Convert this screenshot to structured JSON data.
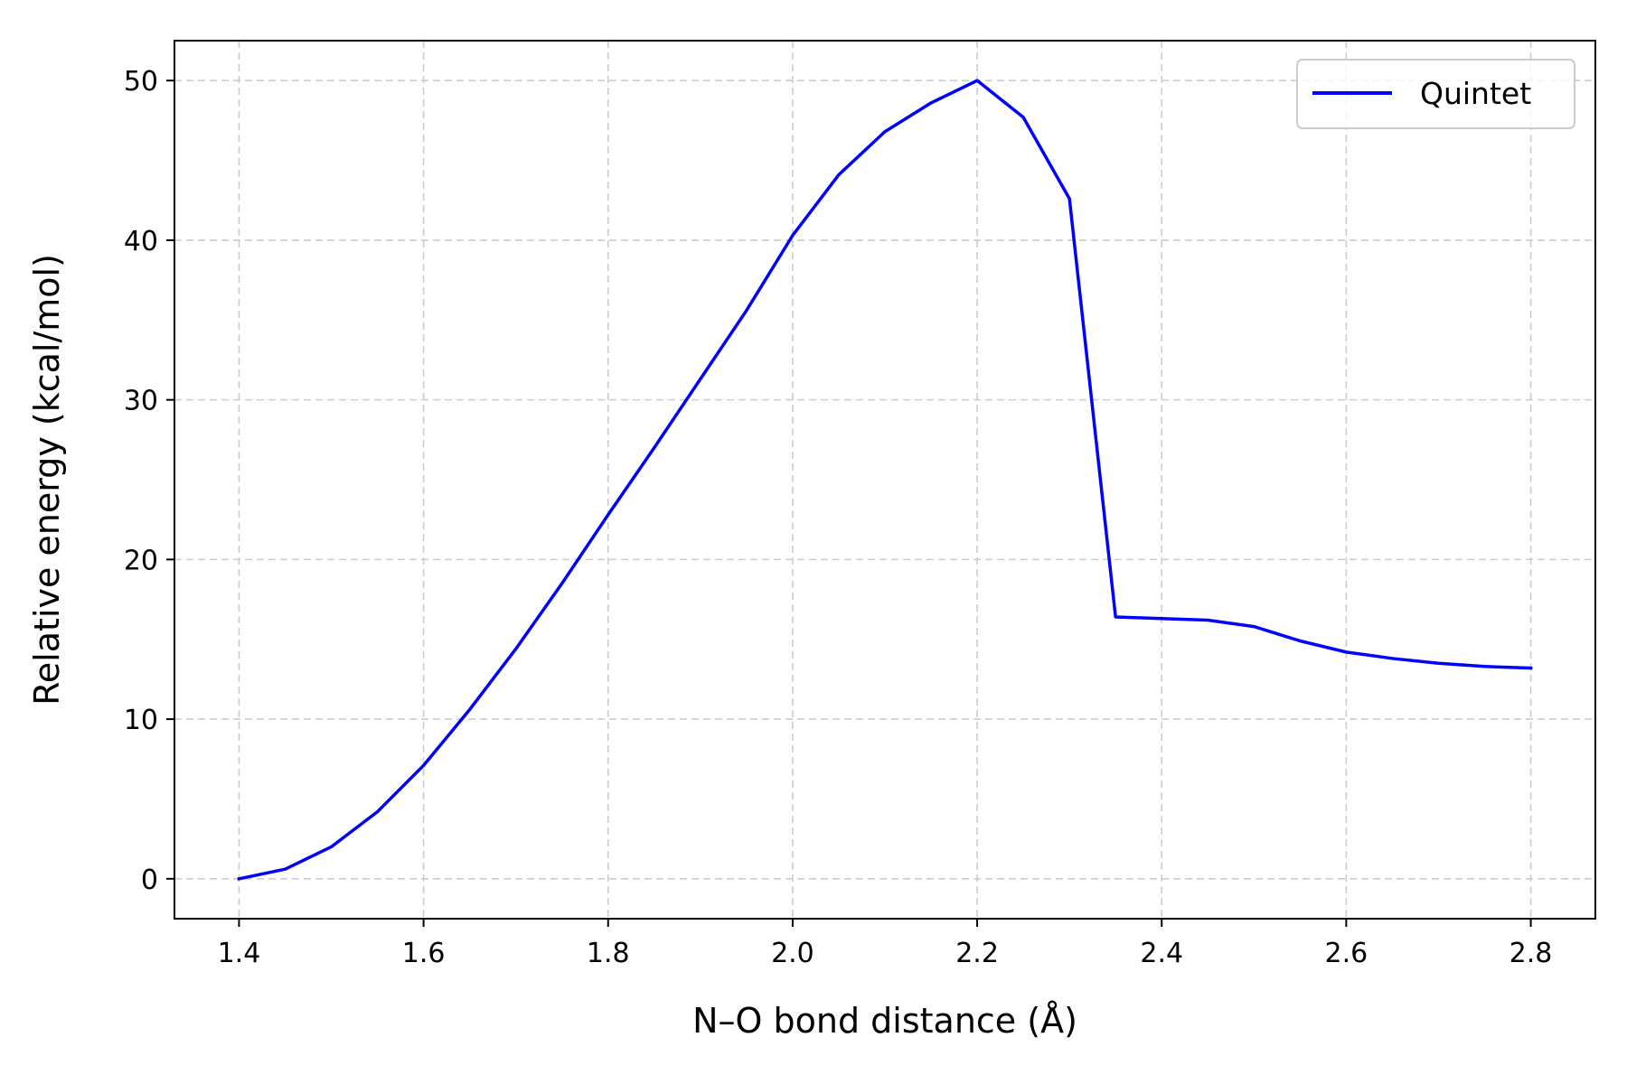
{
  "chart_data": {
    "type": "line",
    "title": "",
    "xlabel": "N–O bond distance (Å)",
    "ylabel": "Relative energy (kcal/mol)",
    "xlim": [
      1.33,
      2.87
    ],
    "ylim": [
      -2.5,
      52.5
    ],
    "xticks": [
      1.4,
      1.6,
      1.8,
      2.0,
      2.2,
      2.4,
      2.6,
      2.8
    ],
    "xtick_labels": [
      "1.4",
      "1.6",
      "1.8",
      "2.0",
      "2.2",
      "2.4",
      "2.6",
      "2.8"
    ],
    "yticks": [
      0,
      10,
      20,
      30,
      40,
      50
    ],
    "ytick_labels": [
      "0",
      "10",
      "20",
      "30",
      "40",
      "50"
    ],
    "grid": true,
    "legend_position": "top-right",
    "series": [
      {
        "name": "Quintet",
        "color": "#0000ff",
        "x": [
          1.4,
          1.45,
          1.5,
          1.55,
          1.6,
          1.65,
          1.7,
          1.75,
          1.8,
          1.85,
          1.9,
          1.95,
          2.0,
          2.05,
          2.1,
          2.15,
          2.2,
          2.25,
          2.3,
          2.35,
          2.4,
          2.45,
          2.5,
          2.55,
          2.6,
          2.65,
          2.7,
          2.75,
          2.8
        ],
        "y": [
          0.0,
          0.6,
          2.0,
          4.2,
          7.1,
          10.6,
          14.4,
          18.5,
          22.8,
          27.0,
          31.3,
          35.6,
          40.3,
          44.1,
          46.8,
          48.6,
          50.0,
          47.7,
          42.6,
          16.4,
          16.3,
          16.2,
          15.8,
          14.9,
          14.2,
          13.8,
          13.5,
          13.3,
          13.2
        ]
      }
    ]
  }
}
